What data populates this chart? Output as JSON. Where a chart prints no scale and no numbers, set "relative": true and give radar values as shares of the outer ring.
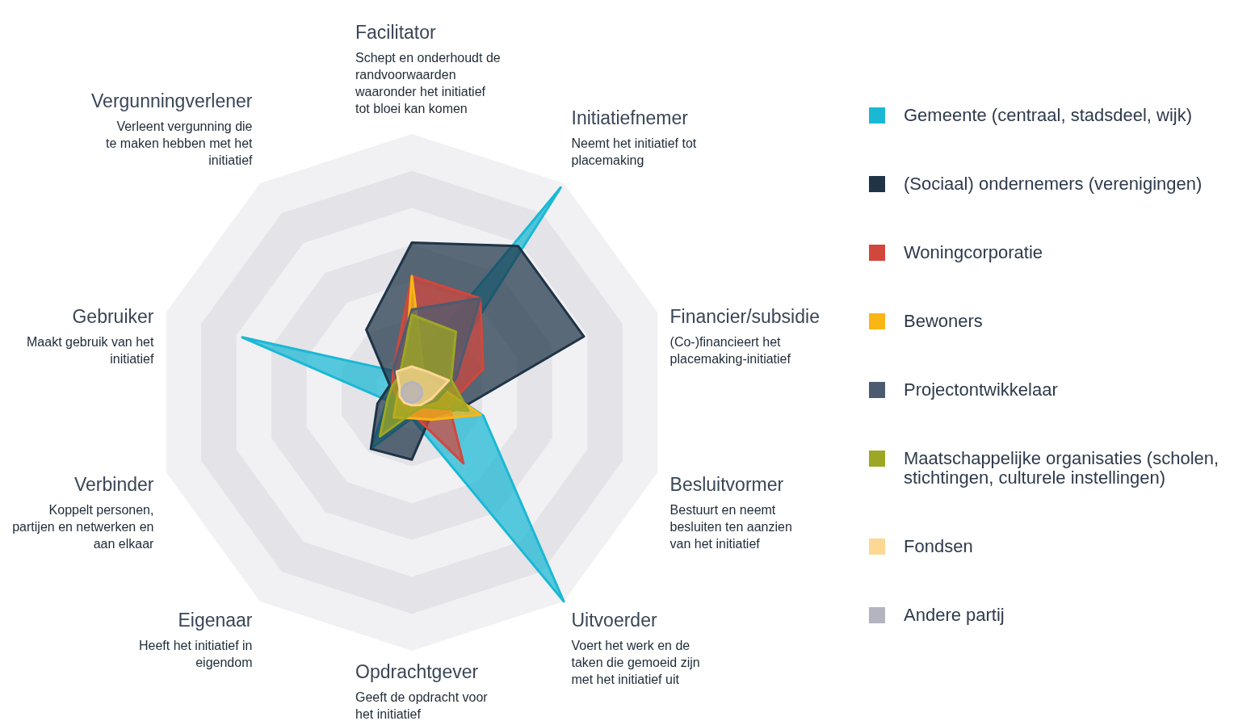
{
  "chart_data": {
    "type": "radar",
    "relative": true,
    "legend": "right",
    "categories": [
      "Facilitator",
      "Initiatiefnemer",
      "Financier/subsidie",
      "Besluitvormer",
      "Uitvoerder",
      "Opdrachtgever",
      "Eigenaar",
      "Verbinder",
      "Gebruiker",
      "Vergunningverlener"
    ],
    "annotations": [
      "Schept en onderhoudt de randvoorwaarden waaronder het initiatief tot bloei kan komen",
      "Neemt het initiatief tot placemaking",
      "(Co-)financieert het placemaking-initiatief",
      "Bestuurt en neemt besluiten ten aanzien van het initiatief",
      "Voert het werk en de taken die gemoeid zijn met het initiatief uit",
      "Geeft de opdracht voor het initiatief",
      "Heeft het initiatief in eigendom",
      "Koppelt personen, partijen en netwerken en aan elkaar",
      "Maakt gebruik van het initiatief",
      "Verleent vergunning die te maken hebben met het initiatief"
    ],
    "series": [
      {
        "name": "Gemeente (centraal, stadsdeel, wijk)",
        "color": "#1bb8d4",
        "values": [
          0.1,
          0.98,
          0.1,
          0.29,
          1,
          0.1,
          0.27,
          0.1,
          0.69,
          0.1
        ]
      },
      {
        "name": "(Sociaal) ondernemers (verenigingen)",
        "color": "#1f3447",
        "values": [
          0.58,
          0.7,
          0.7,
          0.2,
          0.12,
          0.26,
          0.27,
          0.14,
          0.09,
          0.3
        ]
      },
      {
        "name": "Woningcorporatie",
        "color": "#d2473c",
        "values": [
          0.45,
          0.45,
          0.29,
          0.15,
          0.34,
          0.08,
          0.06,
          0.06,
          0.08,
          0.12
        ]
      },
      {
        "name": "Bewoners",
        "color": "#fbb615",
        "values": [
          0.45,
          0.08,
          0.1,
          0.28,
          0.13,
          0.1,
          0.12,
          0.06,
          0.05,
          0.05
        ]
      },
      {
        "name": "Projectontwikkelaar",
        "color": "#4d5b70",
        "values": [
          0.32,
          0.45,
          0.18,
          0.1,
          0.06,
          0.05,
          0.05,
          0.05,
          0.05,
          0.12
        ]
      },
      {
        "name": "Maatschappelijke organisaties (scholen, stichtingen, culturele instellingen)",
        "color": "#9ca823",
        "values": [
          0.3,
          0.29,
          0.16,
          0.23,
          0.07,
          0.08,
          0.21,
          0.1,
          0.08,
          0.08
        ]
      },
      {
        "name": "Fondsen",
        "color": "#fcd894",
        "values": [
          0.1,
          0.1,
          0.15,
          0.08,
          0.06,
          0.05,
          0.05,
          0.05,
          0.05,
          0.1
        ]
      },
      {
        "name": "Andere partij",
        "color": "#b4b3c0",
        "values": [
          0.04,
          0.04,
          0.04,
          0.04,
          0.04,
          0.04,
          0.04,
          0.04,
          0.04,
          0.04
        ]
      }
    ]
  }
}
